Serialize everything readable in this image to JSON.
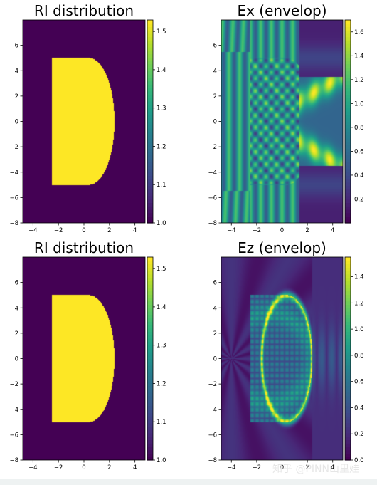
{
  "watermark": "知乎 @PINN山里娃",
  "colormap": [
    "#440154",
    "#482878",
    "#3e4989",
    "#31688e",
    "#26828e",
    "#1f9e89",
    "#35b779",
    "#6ece58",
    "#b5de2b",
    "#fde725"
  ],
  "chart_data": [
    {
      "type": "heatmap",
      "title": "RI distribution",
      "xlabel": "",
      "ylabel": "",
      "xlim": [
        -4.8,
        4.8
      ],
      "ylim": [
        -8,
        8
      ],
      "xticks": [
        -4,
        -2,
        0,
        2,
        4
      ],
      "yticks": [
        -8,
        -6,
        -4,
        -2,
        0,
        2,
        4,
        6
      ],
      "field": "ri",
      "vmin": 1.0,
      "vmax": 1.53,
      "colorbar_ticks": [
        "1.0",
        "1.1",
        "1.2",
        "1.3",
        "1.4",
        "1.5"
      ],
      "colorbar_values": [
        1.0,
        1.1,
        1.2,
        1.3,
        1.4,
        1.5
      ],
      "shape": {
        "kind": "half-lens",
        "x_left": -2.5,
        "x_flat_right": 0.4,
        "half_height": 5.0,
        "x_max": 2.4,
        "n_inside": 1.53,
        "n_outside": 1.0
      }
    },
    {
      "type": "heatmap",
      "title": "Ex (envelop)",
      "xlabel": "",
      "ylabel": "",
      "xlim": [
        -4.8,
        4.8
      ],
      "ylim": [
        -8,
        8
      ],
      "xticks": [
        -4,
        -2,
        0,
        2,
        4
      ],
      "yticks": [
        -8,
        -6,
        -4,
        -2,
        0,
        2,
        4,
        6
      ],
      "field": "ex",
      "vmin": 0.0,
      "vmax": 1.7,
      "colorbar_ticks": [
        "0.2",
        "0.4",
        "0.6",
        "0.8",
        "1.0",
        "1.2",
        "1.4",
        "1.6"
      ],
      "colorbar_values": [
        0.2,
        0.4,
        0.6,
        0.8,
        1.0,
        1.2,
        1.4,
        1.6
      ]
    },
    {
      "type": "heatmap",
      "title": "RI distribution",
      "xlabel": "",
      "ylabel": "",
      "xlim": [
        -4.8,
        4.8
      ],
      "ylim": [
        -8,
        8
      ],
      "xticks": [
        -4,
        -2,
        0,
        2,
        4
      ],
      "yticks": [
        -8,
        -6,
        -4,
        -2,
        0,
        2,
        4,
        6
      ],
      "field": "ri",
      "vmin": 1.0,
      "vmax": 1.53,
      "colorbar_ticks": [
        "1.0",
        "1.1",
        "1.2",
        "1.3",
        "1.4",
        "1.5"
      ],
      "colorbar_values": [
        1.0,
        1.1,
        1.2,
        1.3,
        1.4,
        1.5
      ],
      "shape": {
        "kind": "half-lens",
        "x_left": -2.5,
        "x_flat_right": 0.4,
        "half_height": 5.0,
        "x_max": 2.4,
        "n_inside": 1.53,
        "n_outside": 1.0
      }
    },
    {
      "type": "heatmap",
      "title": "Ez (envelop)",
      "xlabel": "",
      "ylabel": "",
      "xlim": [
        -4.8,
        4.8
      ],
      "ylim": [
        -8,
        8
      ],
      "xticks": [
        -4,
        -2,
        0,
        2,
        4
      ],
      "yticks": [
        -8,
        -6,
        -4,
        -2,
        0,
        2,
        4,
        6
      ],
      "field": "ez",
      "vmin": 0.0,
      "vmax": 1.55,
      "colorbar_ticks": [
        "0.0",
        "0.2",
        "0.4",
        "0.6",
        "0.8",
        "1.0",
        "1.2",
        "1.4"
      ],
      "colorbar_values": [
        0.0,
        0.2,
        0.4,
        0.6,
        0.8,
        1.0,
        1.2,
        1.4
      ]
    }
  ]
}
